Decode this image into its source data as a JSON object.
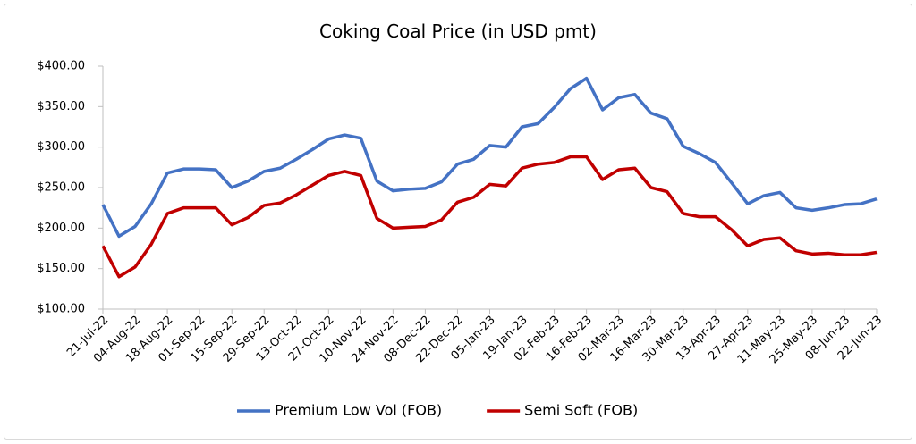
{
  "chart_data": {
    "type": "line",
    "title": "Coking Coal Price (in USD pmt)",
    "categories": [
      "21-Jul-22",
      null,
      "04-Aug-22",
      null,
      "18-Aug-22",
      null,
      "01-Sep-22",
      null,
      "15-Sep-22",
      null,
      "29-Sep-22",
      null,
      "13-Oct-22",
      null,
      "27-Oct-22",
      null,
      "10-Nov-22",
      null,
      "24-Nov-22",
      null,
      "08-Dec-22",
      null,
      "22-Dec-22",
      null,
      "05-Jan-23",
      null,
      "19-Jan-23",
      null,
      "02-Feb-23",
      null,
      "16-Feb-23",
      null,
      "02-Mar-23",
      null,
      "16-Mar-23",
      null,
      "30-Mar-23",
      null,
      "13-Apr-23",
      null,
      "27-Apr-23",
      null,
      "11-May-23",
      null,
      "25-May-23",
      null,
      "08-Jun-23",
      null,
      "22-Jun-23"
    ],
    "series": [
      {
        "name": "Premium Low Vol (FOB)",
        "color": "#4472c4",
        "values": [
          229,
          190,
          202,
          230,
          268,
          273,
          273,
          272,
          250,
          258,
          270,
          274,
          285,
          297,
          310,
          315,
          311,
          258,
          246,
          248,
          249,
          257,
          279,
          285,
          302,
          300,
          325,
          329,
          349,
          372,
          385,
          346,
          361,
          365,
          342,
          335,
          301,
          292,
          281,
          256,
          230,
          240,
          244,
          225,
          222,
          225,
          229,
          230,
          236
        ]
      },
      {
        "name": "Semi Soft (FOB)",
        "color": "#c00000",
        "values": [
          178,
          140,
          152,
          180,
          218,
          225,
          225,
          225,
          204,
          213,
          228,
          231,
          241,
          253,
          265,
          270,
          265,
          212,
          200,
          201,
          202,
          210,
          232,
          238,
          254,
          252,
          274,
          279,
          281,
          288,
          288,
          260,
          272,
          274,
          250,
          245,
          218,
          214,
          214,
          198,
          178,
          186,
          188,
          172,
          168,
          169,
          167,
          167,
          170
        ]
      }
    ],
    "ylim": [
      100,
      400
    ],
    "yticks": [
      {
        "value": 100,
        "label": "$100.00"
      },
      {
        "value": 150,
        "label": "$150.00"
      },
      {
        "value": 200,
        "label": "$200.00"
      },
      {
        "value": 250,
        "label": "$250.00"
      },
      {
        "value": 300,
        "label": "$300.00"
      },
      {
        "value": 350,
        "label": "$350.00"
      },
      {
        "value": 400,
        "label": "$400.00"
      }
    ],
    "grid": false,
    "legend": "bottom"
  }
}
